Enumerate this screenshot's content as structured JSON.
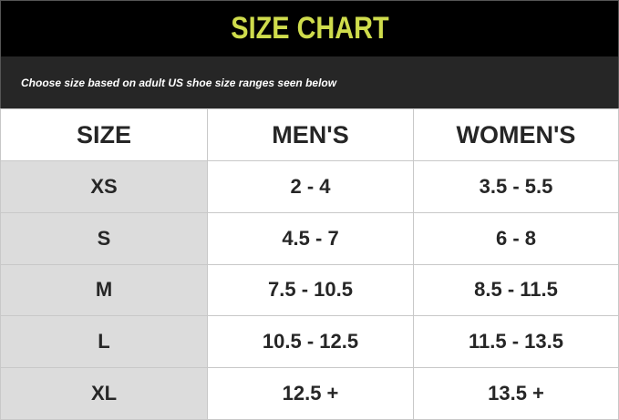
{
  "title": "SIZE CHART",
  "subtitle": "Choose size based on adult US shoe size ranges seen below",
  "colors": {
    "title": "#cfdc4c",
    "header_bg": "#000000",
    "subtitle_bg": "#262626",
    "size_column_bg": "#dcdcdc"
  },
  "headers": [
    "SIZE",
    "MEN'S",
    "WOMEN'S"
  ],
  "rows": [
    {
      "size": "XS",
      "mens": "2 - 4",
      "womens": "3.5 - 5.5"
    },
    {
      "size": "S",
      "mens": "4.5 - 7",
      "womens": "6 - 8"
    },
    {
      "size": "M",
      "mens": "7.5 - 10.5",
      "womens": "8.5 - 11.5"
    },
    {
      "size": "L",
      "mens": "10.5 - 12.5",
      "womens": "11.5 - 13.5"
    },
    {
      "size": "XL",
      "mens": "12.5 +",
      "womens": "13.5 +"
    }
  ]
}
